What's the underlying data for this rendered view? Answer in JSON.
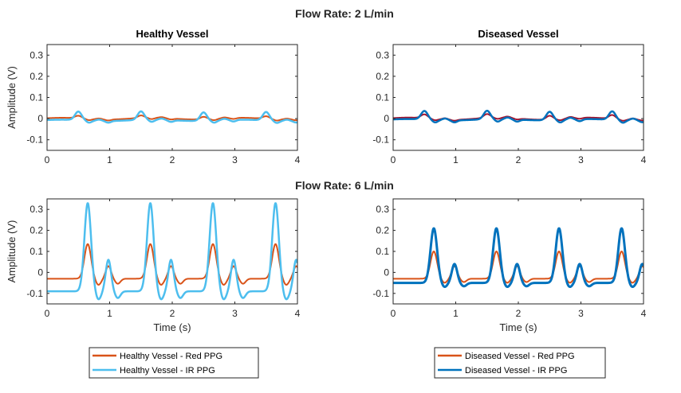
{
  "figure": {
    "group_titles": [
      "Flow Rate: 2 L/min",
      "Flow Rate: 6 L/min"
    ]
  },
  "colors": {
    "healthy_red": "#D95319",
    "healthy_ir": "#4DBEEE",
    "diseased_red": "#D95319",
    "diseased_ir": "#0072BD",
    "diseased_red_2lmin": "#A2142F"
  },
  "chart_data": [
    {
      "type": "line",
      "title": "Healthy Vessel",
      "group": "Flow Rate: 2 L/min",
      "xlabel": "",
      "ylabel": "Amplitude (V)",
      "xlim": [
        0,
        4
      ],
      "ylim": [
        -0.15,
        0.35
      ],
      "xticks": [
        0,
        1,
        2,
        3,
        4
      ],
      "yticks": [
        -0.1,
        0,
        0.1,
        0.2,
        0.3
      ],
      "grid": false,
      "series": [
        {
          "name": "Healthy Vessel - Red PPG",
          "color": "#D95319",
          "width": 2,
          "model": {
            "base": 0.0,
            "peaks": [
              0.5,
              1.5,
              2.5,
              3.5
            ],
            "main_amp": 0.012,
            "neg_amp": -0.006,
            "dicrotic_amp": 0.004,
            "drift": 0.004
          }
        },
        {
          "name": "Healthy Vessel - IR PPG",
          "color": "#4DBEEE",
          "width": 2.5,
          "model": {
            "base": -0.008,
            "peaks": [
              0.5,
              1.5,
              2.5,
              3.5
            ],
            "main_amp": 0.04,
            "neg_amp": -0.01,
            "dicrotic_amp": 0.006,
            "drift": 0.003
          }
        }
      ]
    },
    {
      "type": "line",
      "title": "Diseased Vessel",
      "group": "Flow Rate: 2 L/min",
      "xlabel": "",
      "ylabel": "",
      "xlim": [
        0,
        4
      ],
      "ylim": [
        -0.15,
        0.35
      ],
      "xticks": [
        0,
        1,
        2,
        3,
        4
      ],
      "yticks": [
        -0.1,
        0,
        0.1,
        0.2,
        0.3
      ],
      "grid": false,
      "series": [
        {
          "name": "Diseased Vessel - Red PPG",
          "color": "#A2142F",
          "width": 2,
          "model": {
            "base": 0.0,
            "peaks": [
              0.5,
              1.5,
              2.5,
              3.5
            ],
            "main_amp": 0.018,
            "neg_amp": -0.006,
            "dicrotic_amp": 0.006,
            "drift": 0.005
          }
        },
        {
          "name": "Diseased Vessel - IR PPG",
          "color": "#0072BD",
          "width": 2.5,
          "model": {
            "base": -0.005,
            "peaks": [
              0.5,
              1.5,
              2.5,
              3.5
            ],
            "main_amp": 0.04,
            "neg_amp": -0.012,
            "dicrotic_amp": 0.008,
            "drift": 0.003
          }
        }
      ]
    },
    {
      "type": "line",
      "title": "",
      "group": "Flow Rate: 6 L/min",
      "xlabel": "Time (s)",
      "ylabel": "Amplitude (V)",
      "xlim": [
        0,
        4
      ],
      "ylim": [
        -0.15,
        0.35
      ],
      "xticks": [
        0,
        1,
        2,
        3,
        4
      ],
      "yticks": [
        -0.1,
        0,
        0.1,
        0.2,
        0.3
      ],
      "grid": false,
      "series": [
        {
          "name": "Healthy Vessel - Red PPG",
          "color": "#D95319",
          "width": 2,
          "model": {
            "base": -0.03,
            "peaks": [
              0.65,
              1.65,
              2.65,
              3.65
            ],
            "main_amp": 0.165,
            "neg_amp": -0.03,
            "dicrotic_amp": 0.06,
            "drift": 0.0
          }
        },
        {
          "name": "Healthy Vessel - IR PPG",
          "color": "#4DBEEE",
          "width": 2.5,
          "model": {
            "base": -0.09,
            "peaks": [
              0.65,
              1.65,
              2.65,
              3.65
            ],
            "main_amp": 0.42,
            "neg_amp": -0.04,
            "dicrotic_amp": 0.15,
            "drift": 0.0
          }
        }
      ]
    },
    {
      "type": "line",
      "title": "",
      "group": "Flow Rate: 6 L/min",
      "xlabel": "Time (s)",
      "ylabel": "",
      "xlim": [
        0,
        4
      ],
      "ylim": [
        -0.15,
        0.35
      ],
      "xticks": [
        0,
        1,
        2,
        3,
        4
      ],
      "yticks": [
        -0.1,
        0,
        0.1,
        0.2,
        0.3
      ],
      "grid": false,
      "series": [
        {
          "name": "Diseased Vessel - Red PPG",
          "color": "#D95319",
          "width": 2,
          "model": {
            "base": -0.03,
            "peaks": [
              0.65,
              1.65,
              2.65,
              3.65
            ],
            "main_amp": 0.13,
            "neg_amp": -0.02,
            "dicrotic_amp": 0.06,
            "drift": 0.0
          }
        },
        {
          "name": "Diseased Vessel - IR PPG",
          "color": "#0072BD",
          "width": 3,
          "model": {
            "base": -0.05,
            "peaks": [
              0.65,
              1.65,
              2.65,
              3.65
            ],
            "main_amp": 0.26,
            "neg_amp": -0.02,
            "dicrotic_amp": 0.09,
            "drift": 0.0
          }
        }
      ]
    }
  ],
  "legends": [
    {
      "entries": [
        {
          "label": "Healthy Vessel - Red PPG",
          "color": "#D95319"
        },
        {
          "label": "Healthy Vessel - IR PPG",
          "color": "#4DBEEE"
        }
      ]
    },
    {
      "entries": [
        {
          "label": "Diseased Vessel - Red PPG",
          "color": "#D95319"
        },
        {
          "label": "Diseased Vessel - IR PPG",
          "color": "#0072BD"
        }
      ]
    }
  ]
}
